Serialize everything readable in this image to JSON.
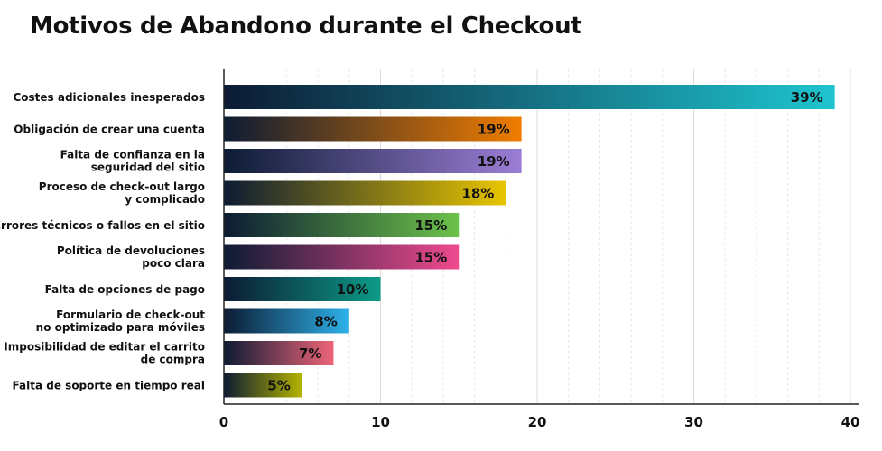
{
  "chart_data": {
    "type": "bar",
    "orientation": "horizontal",
    "title": "Motivos de Abandono durante el Checkout",
    "categories": [
      [
        "Costes adicionales inesperados"
      ],
      [
        "Obligación de crear una cuenta"
      ],
      [
        "Falta de confianza en la",
        "seguridad del sitio"
      ],
      [
        "Proceso de check-out largo",
        "y complicado"
      ],
      [
        "Errores técnicos o fallos en el sitio"
      ],
      [
        "Política de devoluciones",
        "poco clara"
      ],
      [
        "Falta de opciones de pago"
      ],
      [
        "Formulario de check-out",
        "no optimizado para móviles"
      ],
      [
        "Imposibilidad de editar el carrito",
        "de compra"
      ],
      [
        "Falta de soporte en tiempo real"
      ]
    ],
    "values": [
      39,
      19,
      19,
      18,
      15,
      15,
      10,
      8,
      7,
      5
    ],
    "value_labels": [
      "39%",
      "19%",
      "19%",
      "18%",
      "15%",
      "15%",
      "10%",
      "8%",
      "7%",
      "5%"
    ],
    "bar_colors": [
      "#1ec4cf",
      "#f07d00",
      "#9c7ed6",
      "#e8c500",
      "#6cc24a",
      "#ef4a8f",
      "#0c9b86",
      "#2eb2ea",
      "#ef6478",
      "#b4b400"
    ],
    "gradient_start": "#0c1b33",
    "xlim": [
      0,
      40
    ],
    "xticks": [
      "0",
      "10",
      "20",
      "30",
      "40"
    ],
    "grid": true,
    "xlabel": "",
    "ylabel": ""
  }
}
